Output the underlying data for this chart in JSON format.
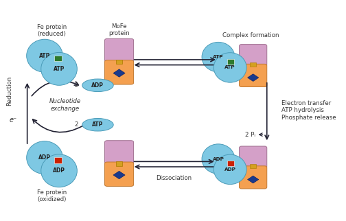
{
  "bg_color": "#ffffff",
  "fe_protein_reduced_label": "Fe protein\n(reduced)",
  "fe_protein_oxidized_label": "Fe protein\n(oxidized)",
  "mofe_protein_label": "MoFe\nprotein",
  "complex_formation_label": "Complex formation",
  "dissociation_label": "Dissociation",
  "nucleotide_exchange_label": "Nucleotide\nexchange",
  "reduction_label": "Reduction",
  "electron_label": "e⁻",
  "electron_transfer_label": "Electron transfer\nATP hydrolysis\nPhosphate release",
  "fe_color": "#7ec8e3",
  "fe_edge_color": "#4a9bb8",
  "mofe_top_color": "#d4a0c8",
  "mofe_top_edge": "#a07090",
  "mofe_bot_color": "#f4a050",
  "mofe_bot_edge": "#c07830",
  "green_sq_color": "#2d7a2d",
  "red_sq_color": "#cc2200",
  "diamond_color": "#1a3a8c",
  "linker_color": "#d4a020",
  "linker_edge": "#aa7800",
  "arrow_color": "#222233",
  "text_color": "#333333",
  "lfs": 7.0,
  "sfs": 6.2,
  "tfs": 5.5
}
